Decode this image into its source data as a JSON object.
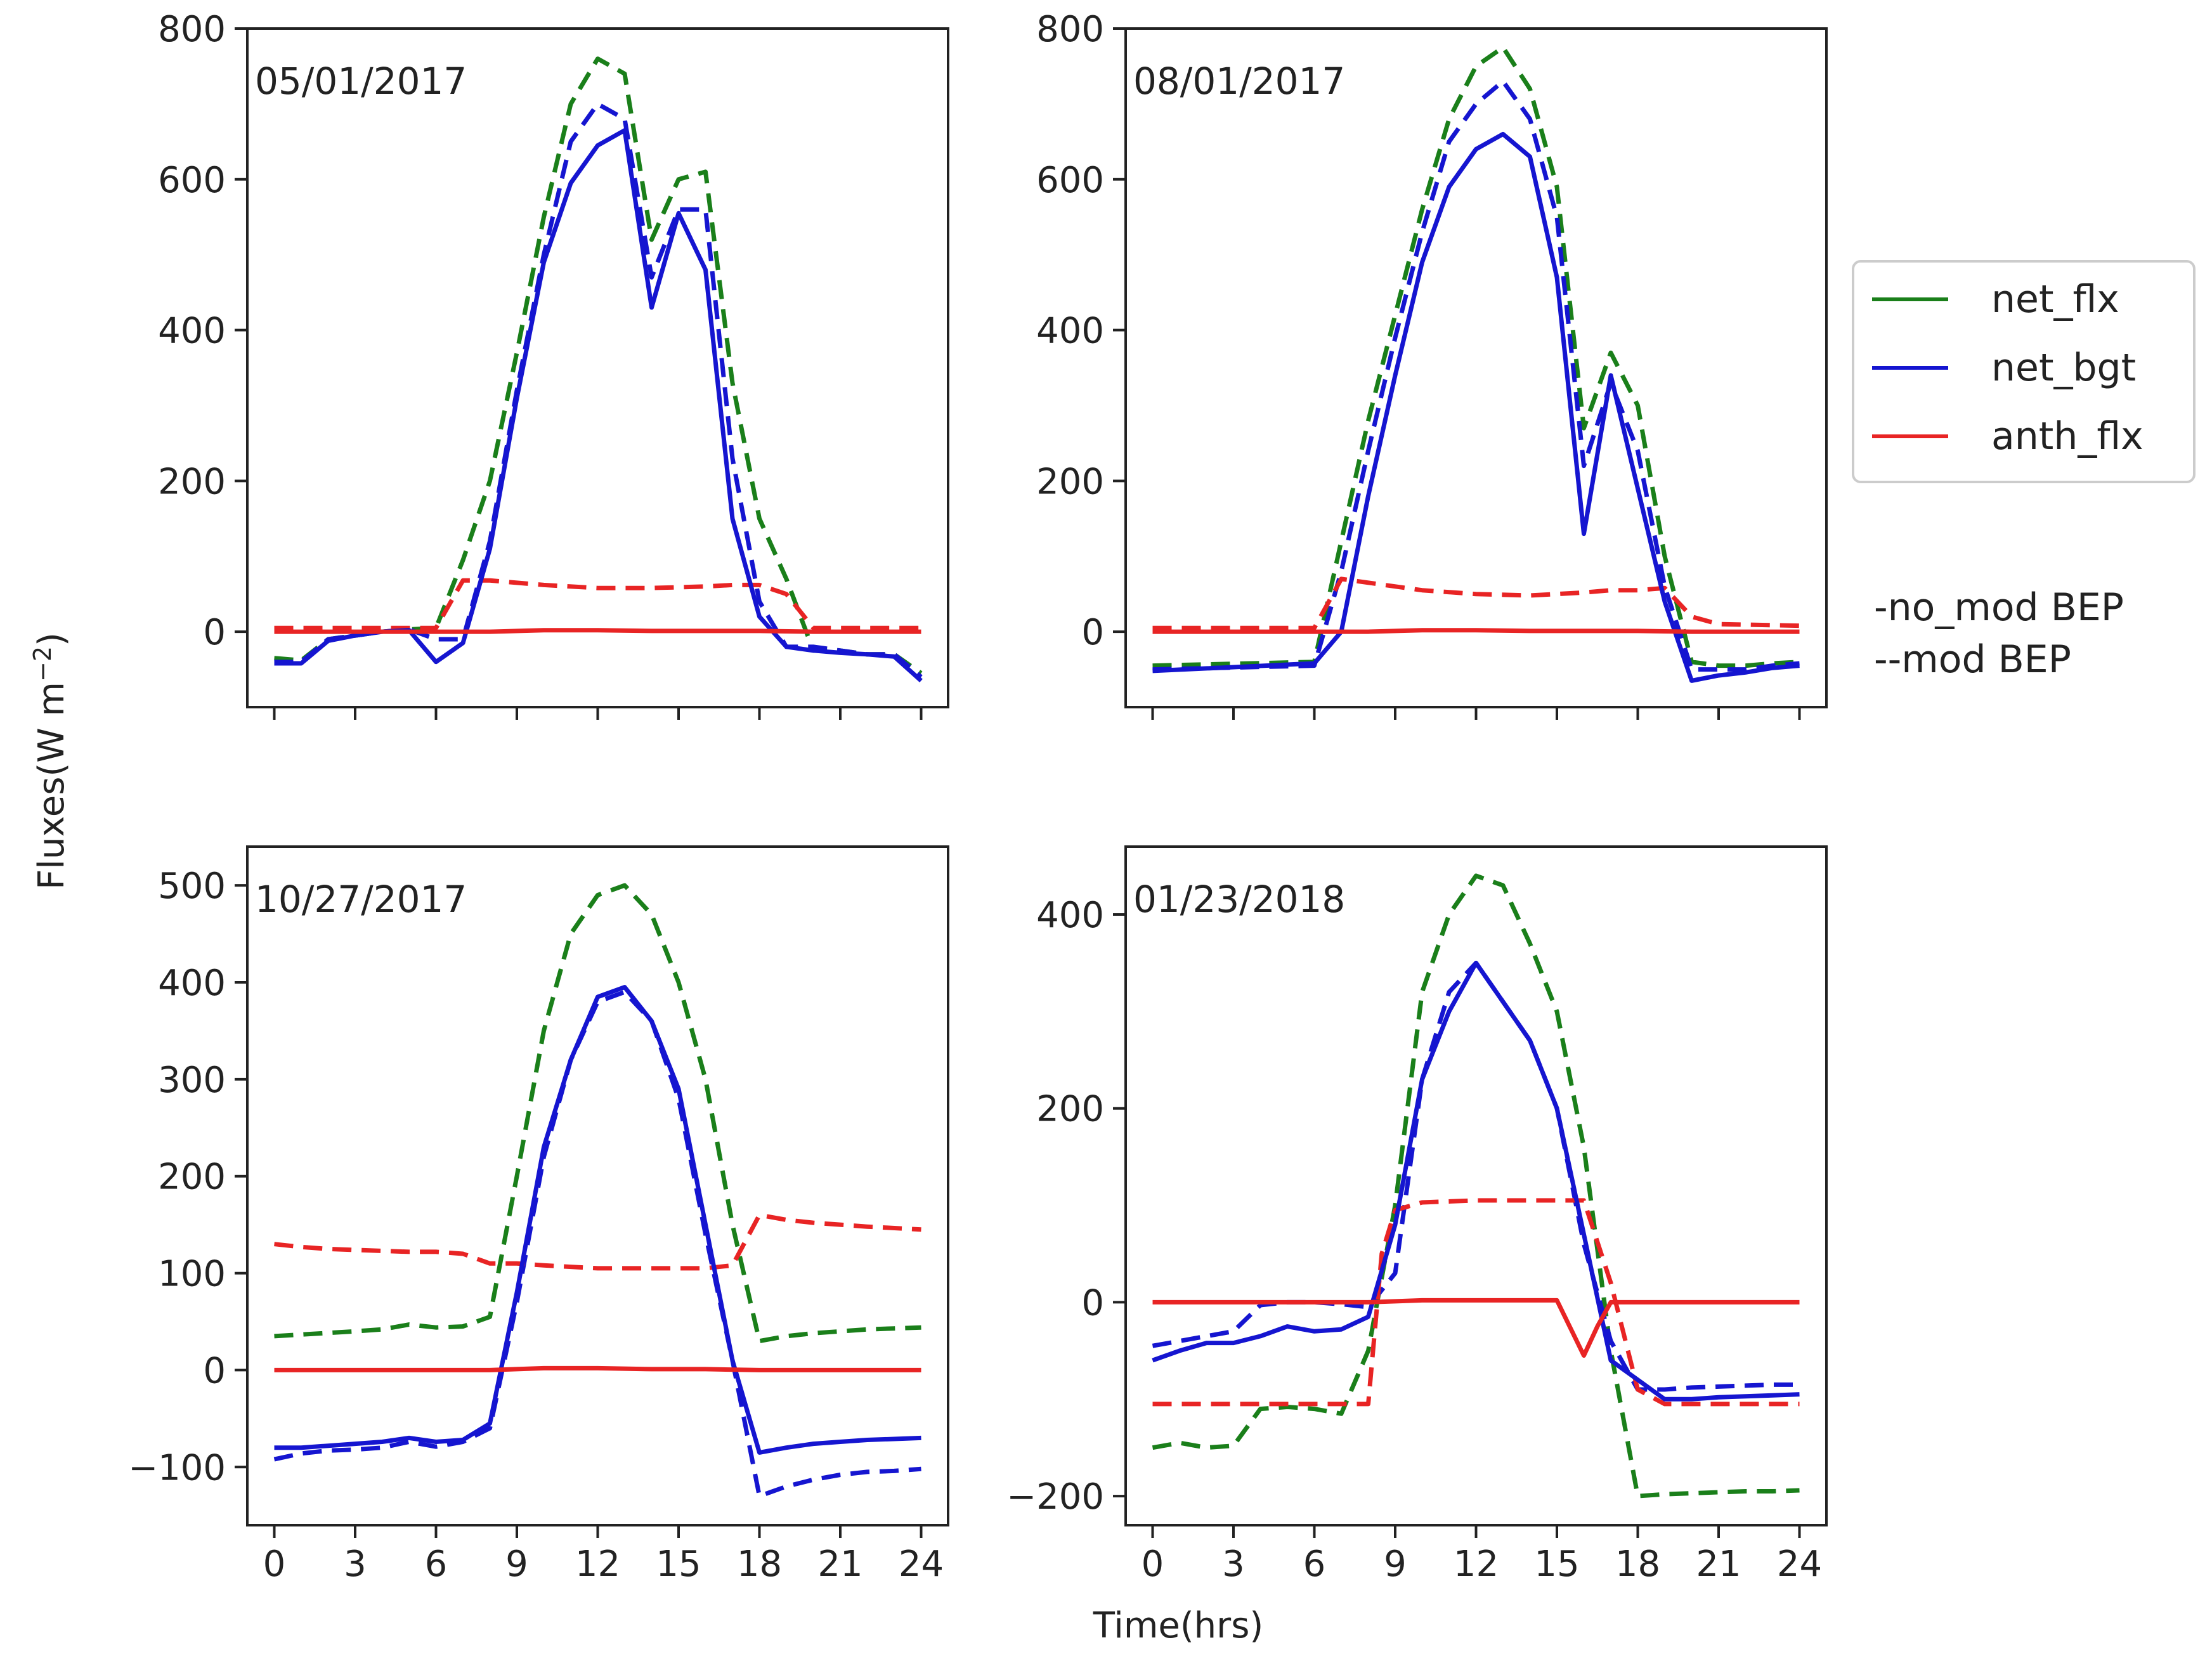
{
  "figure": {
    "ylabel": "Fluxes(W m",
    "ylabel_sup": "−2",
    "ylabel_close": ")",
    "xlabel": "Time(hrs)"
  },
  "legend": {
    "entries": [
      {
        "label": "net_flx",
        "color": "#1a7f1a"
      },
      {
        "label": "net_bgt",
        "color": "#1515d0"
      },
      {
        "label": "anth_flx",
        "color": "#e82424"
      }
    ]
  },
  "notes": {
    "no_mod": "-no_mod BEP",
    "mod": "--mod BEP"
  },
  "colors": {
    "net_flx": "#1a7f1a",
    "net_bgt": "#1515d0",
    "anth_flx": "#e82424",
    "axis": "#222222"
  },
  "chart_data": [
    {
      "type": "line",
      "title": "05/01/2017",
      "xlim": [
        -1,
        25
      ],
      "ylim": [
        -100,
        800
      ],
      "xticks": [
        0,
        3,
        6,
        9,
        12,
        15,
        18,
        21,
        24
      ],
      "xtick_labels": [
        "",
        "",
        "",
        "",
        "",
        "",
        "",
        "",
        ""
      ],
      "yticks": [
        0,
        200,
        400,
        600,
        800
      ],
      "ytick_labels": [
        "0",
        "200",
        "400",
        "600",
        "800"
      ],
      "series": [
        {
          "name": "net_flx",
          "style": "dashed",
          "color": "#1a7f1a",
          "x": [
            0,
            1,
            2,
            3,
            4,
            5,
            6,
            7,
            8,
            9,
            10,
            11,
            12,
            13,
            14,
            15,
            16,
            17,
            18,
            19,
            20,
            21,
            22,
            23,
            24
          ],
          "y": [
            -35,
            -38,
            -10,
            -5,
            0,
            3,
            5,
            95,
            200,
            370,
            550,
            700,
            760,
            740,
            520,
            600,
            610,
            330,
            150,
            70,
            -25,
            -25,
            -30,
            -30,
            -55
          ]
        },
        {
          "name": "net_bgt",
          "style": "dashed",
          "color": "#1515d0",
          "x": [
            0,
            1,
            2,
            3,
            4,
            5,
            6,
            7,
            8,
            9,
            10,
            11,
            12,
            13,
            14,
            15,
            16,
            17,
            18,
            19,
            20,
            21,
            22,
            23,
            24
          ],
          "y": [
            -40,
            -40,
            -10,
            -5,
            0,
            3,
            -10,
            -10,
            120,
            320,
            500,
            650,
            700,
            680,
            470,
            560,
            560,
            230,
            40,
            -20,
            -20,
            -25,
            -30,
            -30,
            -60
          ]
        },
        {
          "name": "anth_flx",
          "style": "dashed",
          "color": "#e82424",
          "x": [
            0,
            6,
            7,
            8,
            10,
            12,
            14,
            16,
            17,
            18,
            19,
            20,
            24
          ],
          "y": [
            5,
            5,
            68,
            68,
            62,
            58,
            58,
            60,
            62,
            62,
            50,
            5,
            5
          ]
        },
        {
          "name": "net_bgt",
          "style": "solid",
          "color": "#1515d0",
          "x": [
            0,
            1,
            2,
            3,
            4,
            5,
            6,
            7,
            8,
            9,
            10,
            11,
            12,
            13,
            14,
            15,
            16,
            17,
            18,
            19,
            20,
            21,
            22,
            23,
            24
          ],
          "y": [
            -42,
            -42,
            -12,
            -5,
            0,
            2,
            -40,
            -15,
            110,
            310,
            490,
            595,
            645,
            665,
            430,
            555,
            480,
            150,
            20,
            -20,
            -25,
            -28,
            -30,
            -33,
            -65
          ]
        },
        {
          "name": "anth_flx",
          "style": "solid",
          "color": "#e82424",
          "x": [
            0,
            6,
            8,
            10,
            12,
            14,
            16,
            18,
            20,
            24
          ],
          "y": [
            0,
            0,
            0,
            2,
            2,
            1,
            1,
            1,
            0,
            0
          ]
        }
      ]
    },
    {
      "type": "line",
      "title": "08/01/2017",
      "xlim": [
        -1,
        25
      ],
      "ylim": [
        -100,
        800
      ],
      "xticks": [
        0,
        3,
        6,
        9,
        12,
        15,
        18,
        21,
        24
      ],
      "xtick_labels": [
        "",
        "",
        "",
        "",
        "",
        "",
        "",
        "",
        ""
      ],
      "yticks": [
        0,
        200,
        400,
        600,
        800
      ],
      "ytick_labels": [
        "0",
        "200",
        "400",
        "600",
        "800"
      ],
      "series": [
        {
          "name": "net_flx",
          "style": "dashed",
          "color": "#1a7f1a",
          "x": [
            0,
            6,
            7,
            8,
            9,
            10,
            11,
            12,
            13,
            14,
            15,
            16,
            17,
            18,
            19,
            20,
            21,
            22,
            23,
            24
          ],
          "y": [
            -45,
            -40,
            120,
            280,
            420,
            560,
            680,
            750,
            775,
            720,
            590,
            270,
            370,
            300,
            100,
            -40,
            -45,
            -45,
            -42,
            -40
          ]
        },
        {
          "name": "net_bgt",
          "style": "dashed",
          "color": "#1515d0",
          "x": [
            0,
            6,
            7,
            8,
            9,
            10,
            11,
            12,
            13,
            14,
            15,
            16,
            17,
            18,
            19,
            20,
            21,
            22,
            23,
            24
          ],
          "y": [
            -50,
            -45,
            80,
            240,
            390,
            530,
            650,
            700,
            730,
            680,
            550,
            220,
            330,
            240,
            60,
            -50,
            -50,
            -50,
            -45,
            -42
          ]
        },
        {
          "name": "anth_flx",
          "style": "dashed",
          "color": "#e82424",
          "x": [
            0,
            6,
            7,
            8,
            10,
            12,
            14,
            16,
            17,
            18,
            19,
            20,
            21,
            24
          ],
          "y": [
            5,
            5,
            70,
            65,
            55,
            50,
            48,
            52,
            55,
            55,
            58,
            20,
            10,
            8
          ]
        },
        {
          "name": "net_bgt",
          "style": "solid",
          "color": "#1515d0",
          "x": [
            0,
            6,
            7,
            8,
            9,
            10,
            11,
            12,
            13,
            14,
            15,
            16,
            17,
            18,
            19,
            20,
            21,
            22,
            23,
            24
          ],
          "y": [
            -52,
            -42,
            0,
            180,
            340,
            490,
            590,
            640,
            660,
            630,
            470,
            130,
            340,
            190,
            40,
            -65,
            -58,
            -54,
            -48,
            -45
          ]
        },
        {
          "name": "anth_flx",
          "style": "solid",
          "color": "#e82424",
          "x": [
            0,
            6,
            8,
            10,
            12,
            14,
            16,
            18,
            20,
            24
          ],
          "y": [
            0,
            0,
            0,
            2,
            2,
            1,
            1,
            1,
            0,
            0
          ]
        }
      ]
    },
    {
      "type": "line",
      "title": "10/27/2017",
      "xlim": [
        -1,
        25
      ],
      "ylim": [
        -160,
        540
      ],
      "xticks": [
        0,
        3,
        6,
        9,
        12,
        15,
        18,
        21,
        24
      ],
      "xtick_labels": [
        "0",
        "3",
        "6",
        "9",
        "12",
        "15",
        "18",
        "21",
        "24"
      ],
      "yticks": [
        -100,
        0,
        100,
        200,
        300,
        400,
        500
      ],
      "ytick_labels": [
        "−100",
        "0",
        "100",
        "200",
        "300",
        "400",
        "500"
      ],
      "series": [
        {
          "name": "net_flx",
          "style": "dashed",
          "color": "#1a7f1a",
          "x": [
            0,
            3,
            4,
            5,
            6,
            7,
            8,
            9,
            10,
            11,
            12,
            13,
            14,
            15,
            16,
            17,
            18,
            19,
            20,
            21,
            22,
            23,
            24
          ],
          "y": [
            35,
            40,
            42,
            47,
            44,
            45,
            55,
            200,
            350,
            450,
            490,
            500,
            470,
            400,
            300,
            150,
            30,
            35,
            38,
            40,
            42,
            43,
            44
          ]
        },
        {
          "name": "net_bgt",
          "style": "dashed",
          "color": "#1515d0",
          "x": [
            0,
            1,
            2,
            3,
            4,
            5,
            6,
            7,
            8,
            9,
            10,
            11,
            12,
            13,
            14,
            15,
            16,
            17,
            18,
            19,
            20,
            21,
            22,
            23,
            24
          ],
          "y": [
            -92,
            -86,
            -83,
            -82,
            -80,
            -74,
            -79,
            -74,
            -60,
            70,
            220,
            320,
            380,
            390,
            360,
            280,
            140,
            10,
            -130,
            -120,
            -113,
            -108,
            -105,
            -104,
            -102
          ]
        },
        {
          "name": "anth_flx",
          "style": "dashed",
          "color": "#e82424",
          "x": [
            0,
            1,
            2,
            3,
            4,
            5,
            6,
            7,
            8,
            9,
            10,
            12,
            14,
            16,
            17,
            18,
            19,
            20,
            22,
            24
          ],
          "y": [
            130,
            127,
            125,
            124,
            123,
            122,
            122,
            120,
            110,
            110,
            108,
            105,
            105,
            105,
            108,
            160,
            155,
            152,
            148,
            145
          ]
        },
        {
          "name": "net_bgt",
          "style": "solid",
          "color": "#1515d0",
          "x": [
            0,
            1,
            2,
            3,
            4,
            5,
            6,
            7,
            8,
            9,
            10,
            11,
            12,
            13,
            14,
            15,
            16,
            17,
            18,
            19,
            20,
            21,
            22,
            23,
            24
          ],
          "y": [
            -80,
            -80,
            -78,
            -76,
            -74,
            -70,
            -74,
            -72,
            -55,
            80,
            230,
            320,
            385,
            395,
            360,
            290,
            150,
            10,
            -85,
            -80,
            -76,
            -74,
            -72,
            -71,
            -70
          ]
        },
        {
          "name": "anth_flx",
          "style": "solid",
          "color": "#e82424",
          "x": [
            0,
            6,
            8,
            10,
            12,
            14,
            16,
            18,
            20,
            24
          ],
          "y": [
            0,
            0,
            0,
            2,
            2,
            1,
            1,
            0,
            0,
            0
          ]
        }
      ]
    },
    {
      "type": "line",
      "title": "01/23/2018",
      "xlim": [
        -1,
        25
      ],
      "ylim": [
        -230,
        470
      ],
      "xticks": [
        0,
        3,
        6,
        9,
        12,
        15,
        18,
        21,
        24
      ],
      "xtick_labels": [
        "0",
        "3",
        "6",
        "9",
        "12",
        "15",
        "18",
        "21",
        "24"
      ],
      "yticks": [
        -200,
        0,
        200,
        400
      ],
      "ytick_labels": [
        "−200",
        "0",
        "200",
        "400"
      ],
      "series": [
        {
          "name": "net_flx",
          "style": "dashed",
          "color": "#1a7f1a",
          "x": [
            0,
            1,
            2,
            3,
            4,
            5,
            6,
            7,
            8,
            9,
            10,
            11,
            12,
            13,
            14,
            15,
            16,
            17,
            18,
            19,
            20,
            21,
            22,
            23,
            24
          ],
          "y": [
            -150,
            -145,
            -150,
            -148,
            -110,
            -108,
            -110,
            -115,
            -50,
            100,
            320,
            400,
            440,
            430,
            370,
            300,
            160,
            -50,
            -200,
            -198,
            -197,
            -196,
            -195,
            -195,
            -194
          ]
        },
        {
          "name": "net_bgt",
          "style": "dashed",
          "color": "#1515d0",
          "x": [
            0,
            1,
            2,
            3,
            4,
            5,
            6,
            7,
            8,
            9,
            10,
            11,
            12,
            13,
            14,
            15,
            16,
            17,
            18,
            19,
            20,
            21,
            22,
            23,
            24
          ],
          "y": [
            -45,
            -40,
            -35,
            -30,
            -3,
            0,
            0,
            -2,
            -5,
            30,
            230,
            320,
            350,
            310,
            270,
            200,
            60,
            -40,
            -90,
            -90,
            -88,
            -87,
            -86,
            -85,
            -85
          ]
        },
        {
          "name": "anth_flx",
          "style": "dashed",
          "color": "#e82424",
          "x": [
            0,
            3,
            4,
            6,
            7,
            8,
            8.5,
            9,
            10,
            12,
            14,
            15,
            16,
            17,
            18,
            19,
            20,
            24
          ],
          "y": [
            -105,
            -105,
            -105,
            -105,
            -105,
            -105,
            50,
            95,
            103,
            105,
            105,
            105,
            105,
            20,
            -90,
            -105,
            -105,
            -105
          ]
        },
        {
          "name": "net_bgt",
          "style": "solid",
          "color": "#1515d0",
          "x": [
            0,
            1,
            2,
            3,
            4,
            5,
            6,
            7,
            8,
            9,
            10,
            11,
            12,
            13,
            14,
            15,
            16,
            17,
            18,
            19,
            20,
            21,
            22,
            23,
            24
          ],
          "y": [
            -60,
            -50,
            -42,
            -42,
            -35,
            -25,
            -30,
            -28,
            -15,
            80,
            230,
            300,
            350,
            310,
            270,
            200,
            70,
            -60,
            -80,
            -100,
            -100,
            -98,
            -97,
            -96,
            -95
          ]
        },
        {
          "name": "anth_flx",
          "style": "solid",
          "color": "#e82424",
          "x": [
            0,
            6,
            8,
            10,
            12,
            14,
            15,
            16,
            16.5,
            17,
            18,
            20,
            24
          ],
          "y": [
            0,
            0,
            0,
            2,
            2,
            2,
            2,
            -55,
            -25,
            0,
            0,
            0,
            0
          ]
        }
      ]
    }
  ]
}
